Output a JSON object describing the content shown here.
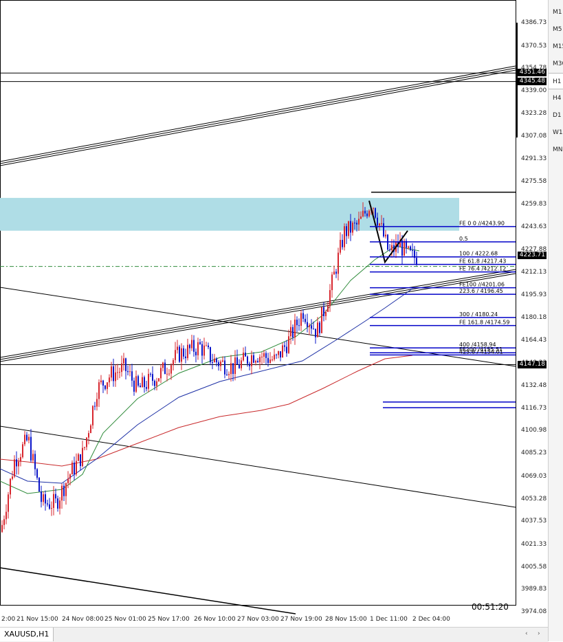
{
  "symbol_tab": "XAUUSD,H1",
  "countdown": "00:51:20",
  "scroll_left": "‹",
  "scroll_right": "›",
  "timeframes": [
    {
      "label": "M1",
      "active": false
    },
    {
      "label": "M5",
      "active": false
    },
    {
      "label": "M15",
      "active": false
    },
    {
      "label": "M30",
      "active": false
    },
    {
      "label": "H1",
      "active": true
    },
    {
      "label": "H4",
      "active": false
    },
    {
      "label": "D1",
      "active": false
    },
    {
      "label": "W1",
      "active": false
    },
    {
      "label": "MN",
      "active": false
    }
  ],
  "price_axis": [
    "4386.73",
    "4370.53",
    "4354.78",
    "4339.00",
    "4323.28",
    "4307.08",
    "4291.33",
    "4275.58",
    "4259.83",
    "4243.63",
    "4227.88",
    "4212.13",
    "4195.93",
    "4180.18",
    "4164.43",
    "4148.23",
    "4132.48",
    "4116.73",
    "4100.98",
    "4085.23",
    "4069.03",
    "4053.28",
    "4037.53",
    "4021.33",
    "4005.58",
    "3989.83",
    "3974.08"
  ],
  "price_tags": [
    {
      "label": "4351.46",
      "price": 4351.46
    },
    {
      "label": "4345.48",
      "price": 4345.48
    },
    {
      "label": "4223.71",
      "price": 4223.71
    },
    {
      "label": "4147.18",
      "price": 4147.18
    }
  ],
  "time_axis": [
    "2:00",
    "21 Nov 15:00",
    "24 Nov 08:00",
    "25 Nov 01:00",
    "25 Nov 17:00",
    "26 Nov 10:00",
    "27 Nov 03:00",
    "27 Nov 19:00",
    "28 Nov 15:00",
    "1 Dec 11:00",
    "2 Dec 04:00"
  ],
  "fib_labels": [
    {
      "text": "FE 0   0  //4243.90",
      "price": 4243.9
    },
    {
      "text": "0.5",
      "price": 4233.2
    },
    {
      "text": "100 / 4222.68",
      "price": 4222.68
    },
    {
      "text": "FE 61.8   /4217.43",
      "price": 4217.43
    },
    {
      "text": "FE 76.4 /4212.12",
      "price": 4212.12
    },
    {
      "text": "FE100  //4201.06",
      "price": 4201.06
    },
    {
      "text": "223.6  / 4196.45",
      "price": 4196.45
    },
    {
      "text": "300  / 4180.24",
      "price": 4180.24
    },
    {
      "text": "FE 161.8  /4174.59",
      "price": 4174.59
    },
    {
      "text": "400  /4158.94",
      "price": 4158.94
    },
    {
      "text": "FE200  /4155.51",
      "price": 4155.51
    },
    {
      "text": "423.6  / 4154.01",
      "price": 4154.01
    }
  ],
  "colors": {
    "bull": "#d7262e",
    "bear": "#0a14c8",
    "ma_fast": "#2e8b3a",
    "ma_mid": "#1c2fa5",
    "ma_slow": "#c8282a",
    "zone": "#afdde6",
    "fib_blue": "#0000c8"
  }
}
